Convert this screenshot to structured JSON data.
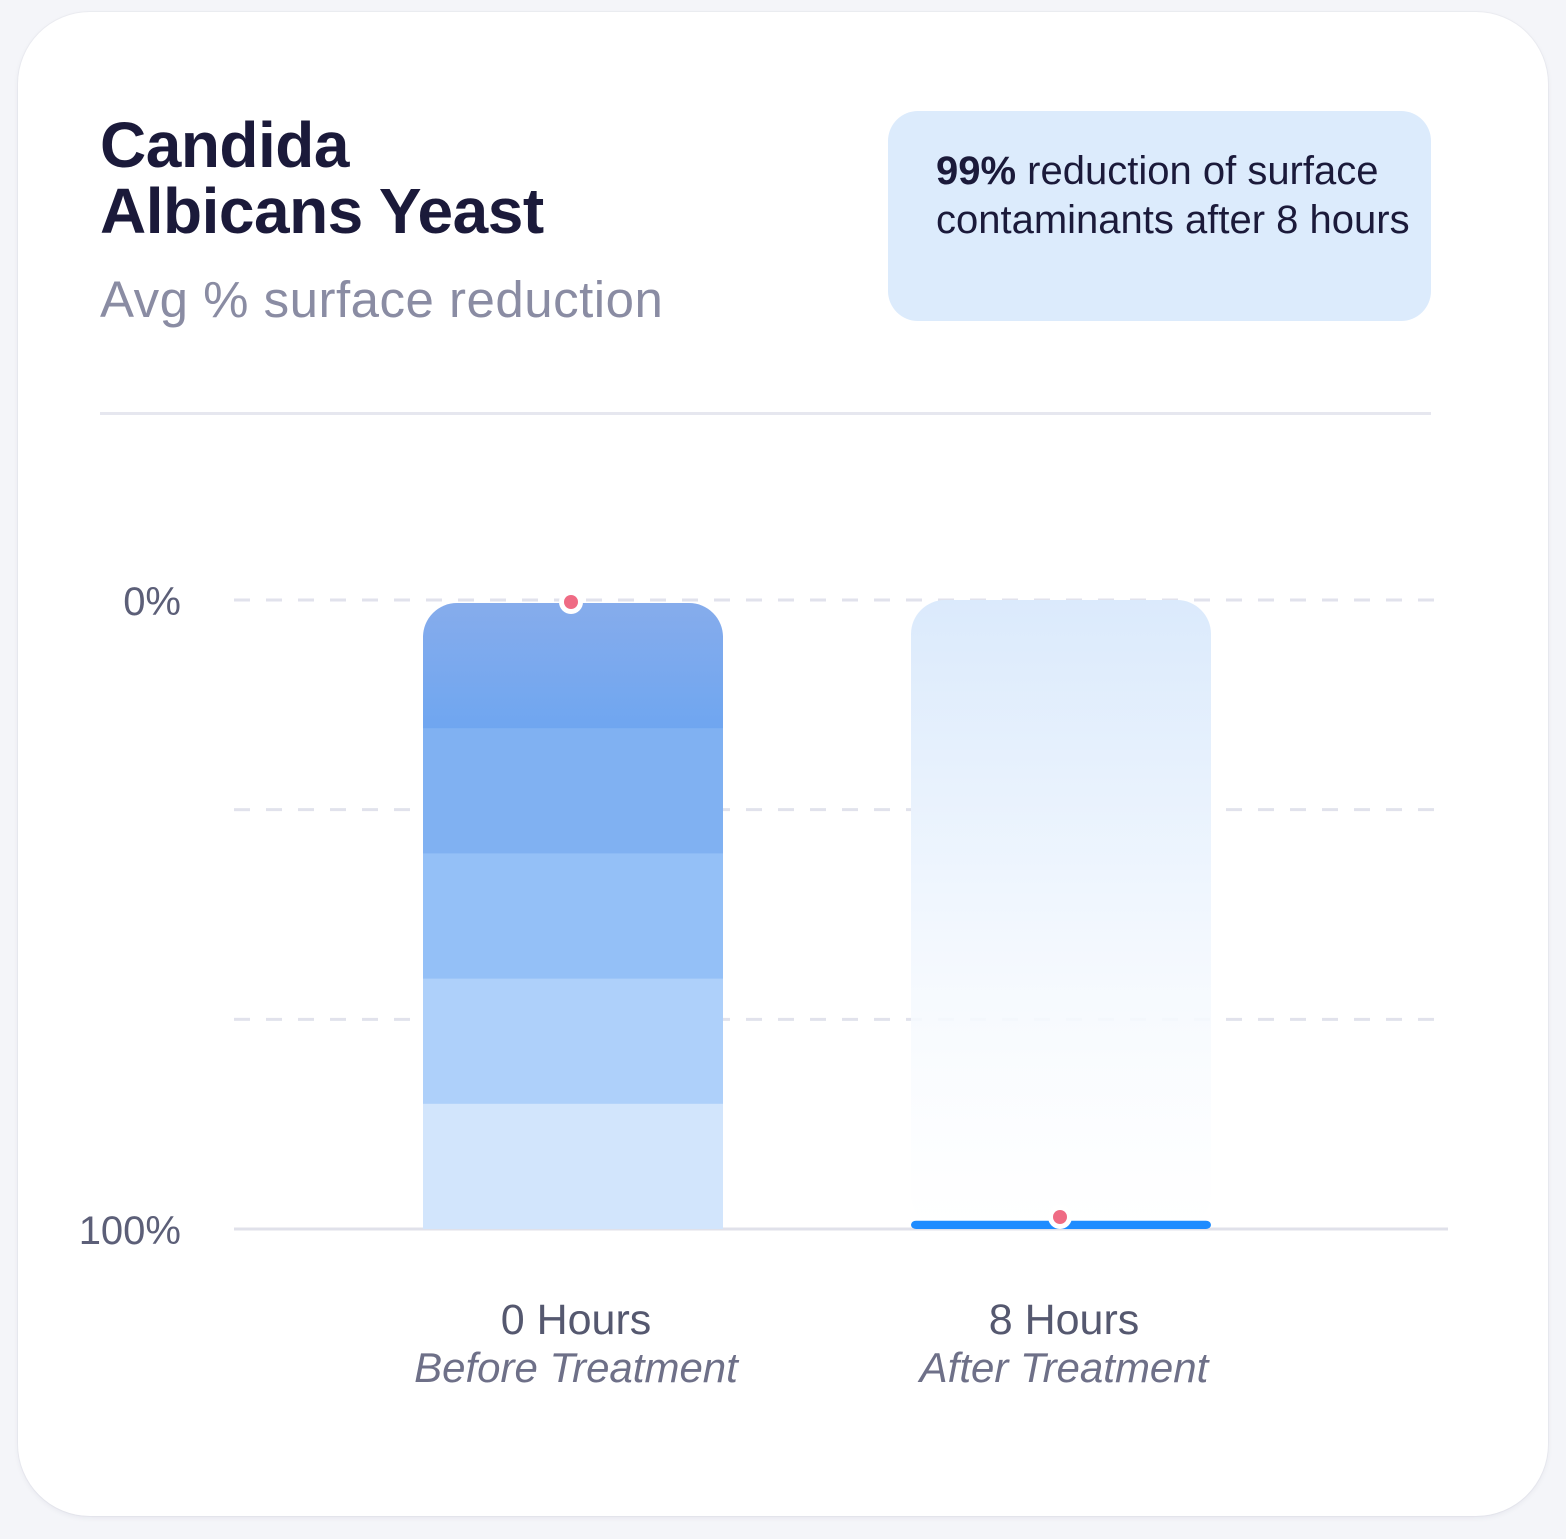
{
  "header": {
    "title_line1": "Candida",
    "title_line2": "Albicans Yeast",
    "subtitle": "Avg % surface reduction"
  },
  "callout": {
    "bold": "99%",
    "text": " reduction of surface contaminants after 8 hours"
  },
  "colors": {
    "title": "#1b1a3a",
    "subtitle": "#8a8ca3",
    "callout_bg": "#dcebfc",
    "bar_dark": "#74a6ef",
    "bar_light": "#d2e5fc",
    "after_fill": "#1e8cff",
    "marker": "#ef6b84",
    "grid": "#e1e2ec"
  },
  "chart_data": {
    "type": "bar",
    "categories": [
      "0 Hours",
      "8 Hours"
    ],
    "category_sublabels": [
      "Before Treatment",
      "After Treatment"
    ],
    "values": [
      0,
      99
    ],
    "ytick_labels": [
      "0%",
      "100%"
    ],
    "ylim": [
      0,
      100
    ],
    "y_inverted": true,
    "grid": true,
    "title": "Candida Albicans Yeast",
    "subtitle": "Avg % surface reduction"
  }
}
